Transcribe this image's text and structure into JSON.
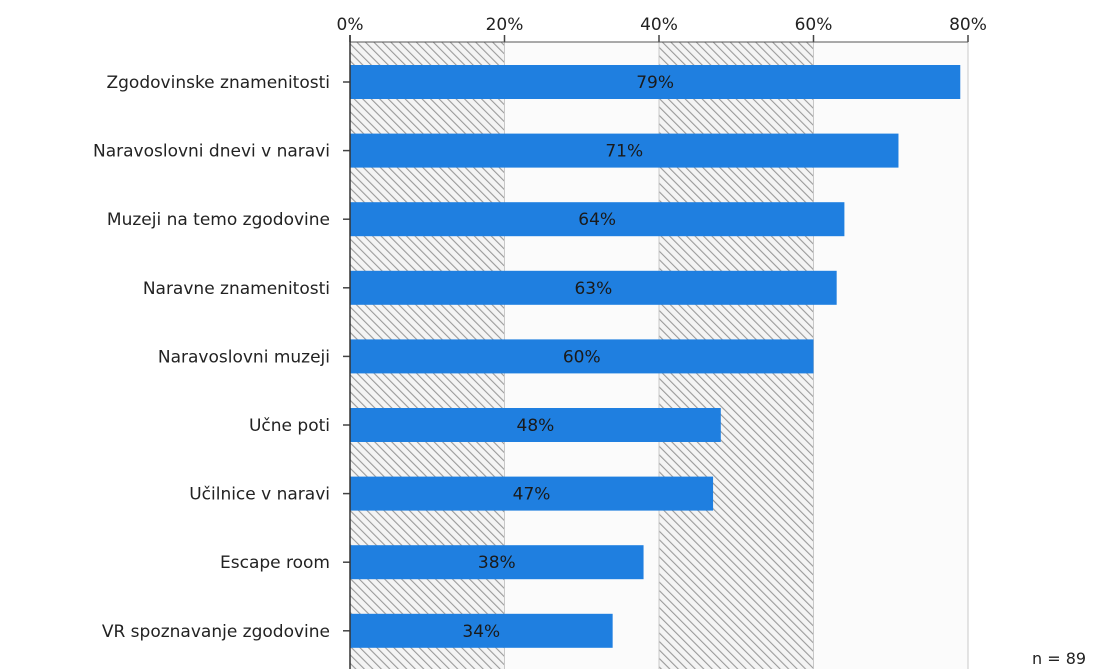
{
  "chart_data": {
    "type": "bar",
    "orientation": "horizontal",
    "categories": [
      "Zgodovinske znamenitosti",
      "Naravoslovni dnevi v naravi",
      "Muzeji na temo zgodovine",
      "Naravne znamenitosti",
      "Naravoslovni muzeji",
      "Učne poti",
      "Učilnice v naravi",
      "Escape room",
      "VR spoznavanje zgodovine"
    ],
    "values": [
      79,
      71,
      64,
      63,
      60,
      48,
      47,
      38,
      34
    ],
    "value_labels": [
      "79%",
      "71%",
      "64%",
      "63%",
      "60%",
      "48%",
      "47%",
      "38%",
      "34%"
    ],
    "x_ticks": [
      0,
      20,
      40,
      60,
      80
    ],
    "x_tick_labels": [
      "0%",
      "20%",
      "40%",
      "60%",
      "80%"
    ],
    "xlim": [
      0,
      80
    ],
    "x_axis_position": "top",
    "bar_color": "#1f7fe0",
    "grid": true,
    "alternating_hatched_bands": true,
    "note": "n = 89"
  }
}
